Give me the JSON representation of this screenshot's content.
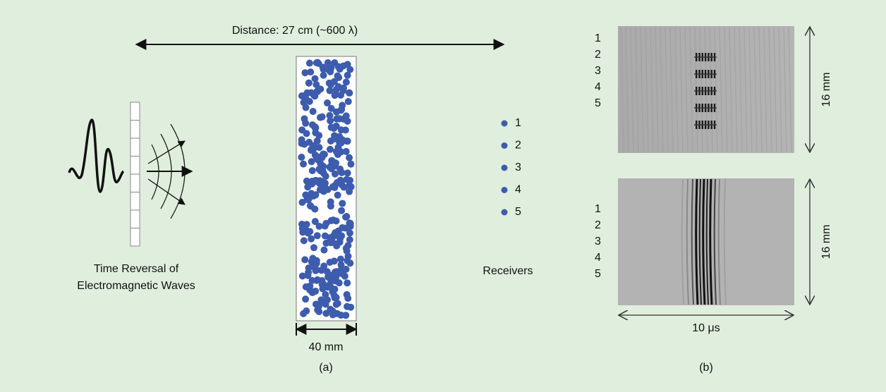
{
  "distance_label": "Distance: 27 cm (~600 λ)",
  "emitter": {
    "label_lines": [
      "Time Reversal of",
      "Electromagnetic Waves"
    ]
  },
  "scatterer": {
    "width_label": "40 mm"
  },
  "receivers": {
    "title": "Receivers",
    "labels": [
      "1",
      "2",
      "3",
      "4",
      "5"
    ]
  },
  "panel_a_label": "(a)",
  "panel_b": {
    "label": "(b)",
    "top": {
      "row_labels": [
        "1",
        "2",
        "3",
        "4",
        "5"
      ],
      "height_label": "16 mm"
    },
    "bottom": {
      "row_labels": [
        "1",
        "2",
        "3",
        "4",
        "5"
      ],
      "height_label": "16 mm",
      "time_label": "10 μs"
    }
  }
}
